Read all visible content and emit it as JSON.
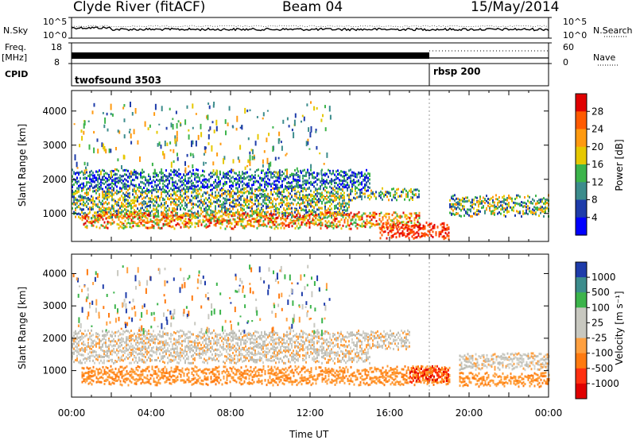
{
  "header": {
    "station": "Clyde River (fitACF)",
    "beam": "Beam 04",
    "date": "15/May/2014"
  },
  "status_panels": {
    "nsky_label": "N.Sky",
    "nsky_ticks": [
      "10^5",
      "10^0"
    ],
    "nsearch_label": "N.Search",
    "nsearch_ticks": [
      "10^5",
      "10^0"
    ],
    "freq_label": "Freq.",
    "freq_unit": "[MHz]",
    "freq_ticks": [
      "18",
      "8"
    ],
    "nave_label": "Nave",
    "nave_ticks": [
      "60",
      "0"
    ],
    "cpid_label": "CPID",
    "cpid_segments": [
      {
        "name": "twofsound 3503",
        "start_hour": 0
      },
      {
        "name": "rbsp 200",
        "start_hour": 18.0
      }
    ]
  },
  "chart_data": [
    {
      "type": "heatmap",
      "name": "Power",
      "ylabel": "Slant Range [km]",
      "xlabel": "",
      "ylim": [
        180,
        4600
      ],
      "yticks": [
        "1000",
        "2000",
        "3000",
        "4000"
      ],
      "xlim": [
        0,
        24
      ],
      "colorbar_label": "Power [dB]",
      "colorbar_ticks": [
        "28",
        "24",
        "20",
        "16",
        "12",
        "8",
        "4"
      ],
      "colorbar_colors": [
        "#e00000",
        "#ff5a00",
        "#ff9a10",
        "#e6c800",
        "#3cb44b",
        "#3c8c8c",
        "#1e3caa",
        "#0000ff"
      ],
      "bands": [
        {
          "range_km": [
            1750,
            2250
          ],
          "hours": [
            0,
            15.0
          ],
          "level": "low"
        },
        {
          "range_km": [
            1450,
            1700
          ],
          "hours": [
            0,
            17.5
          ],
          "level": "mid"
        },
        {
          "range_km": [
            950,
            1450
          ],
          "hours": [
            0,
            14.0
          ],
          "level": "mid"
        },
        {
          "range_km": [
            600,
            1000
          ],
          "hours": [
            0.5,
            17.5
          ],
          "level": "high"
        },
        {
          "range_km": [
            300,
            700
          ],
          "hours": [
            15.5,
            19.0
          ],
          "level": "max"
        },
        {
          "range_km": [
            1000,
            1500
          ],
          "hours": [
            19.0,
            24
          ],
          "level": "mid"
        }
      ]
    },
    {
      "type": "heatmap",
      "name": "Velocity",
      "ylabel": "Slant Range [km]",
      "xlabel": "Time UT",
      "ylim": [
        180,
        4600
      ],
      "yticks": [
        "1000",
        "2000",
        "3000",
        "4000"
      ],
      "xlim": [
        0,
        24
      ],
      "xticks": [
        "00:00",
        "04:00",
        "08:00",
        "12:00",
        "16:00",
        "20:00",
        "00:00"
      ],
      "colorbar_label": "Velocity [m s⁻¹]",
      "colorbar_ticks": [
        "1000",
        "500",
        "100",
        "25",
        "-25",
        "-100",
        "-500",
        "-1000"
      ],
      "colorbar_colors": [
        "#1e3caa",
        "#3c8c8c",
        "#3cb44b",
        "#c8c8c0",
        "#c8c8c0",
        "#ffa040",
        "#ff7a10",
        "#ff3010",
        "#e00000"
      ],
      "bands": [
        {
          "range_km": [
            1700,
            2200
          ],
          "hours": [
            0,
            17.0
          ],
          "level": "gray"
        },
        {
          "range_km": [
            1300,
            1700
          ],
          "hours": [
            0,
            15.0
          ],
          "level": "gray"
        },
        {
          "range_km": [
            600,
            1100
          ],
          "hours": [
            0.5,
            19.0
          ],
          "level": "orange"
        },
        {
          "range_km": [
            700,
            1100
          ],
          "hours": [
            17.0,
            19.0
          ],
          "level": "red"
        },
        {
          "range_km": [
            1100,
            1500
          ],
          "hours": [
            19.5,
            24
          ],
          "level": "gray"
        },
        {
          "range_km": [
            550,
            900
          ],
          "hours": [
            19.5,
            24
          ],
          "level": "orange"
        }
      ]
    }
  ]
}
